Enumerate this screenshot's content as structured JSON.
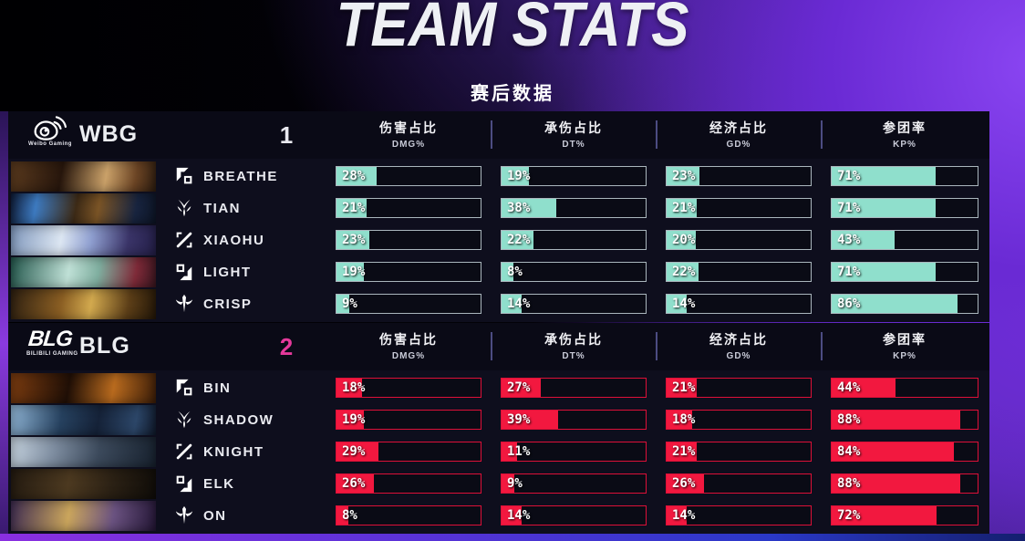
{
  "title": "TEAM STATS",
  "subtitle": "赛后数据",
  "columns": [
    {
      "zh": "伤害占比",
      "en": "DMG%"
    },
    {
      "zh": "承伤占比",
      "en": "DT%"
    },
    {
      "zh": "经济占比",
      "en": "GD%"
    },
    {
      "zh": "参团率",
      "en": "KP%"
    }
  ],
  "colors": {
    "wbg_bar": "#8FDFCC",
    "wbg_border": "#AAB6BD",
    "blg_bar": "#F2183F",
    "blg_border": "#DD1038",
    "score_wbg": "#E9E9F0",
    "score_blg": "#E5399B"
  },
  "teams": [
    {
      "name": "WBG",
      "logo_caption": "Weibo Gaming",
      "score": "1",
      "players": [
        {
          "role": "top",
          "name": "BREATHE",
          "stats": [
            "28%",
            "19%",
            "23%",
            "71%"
          ]
        },
        {
          "role": "jungle",
          "name": "TIAN",
          "stats": [
            "21%",
            "38%",
            "21%",
            "71%"
          ]
        },
        {
          "role": "mid",
          "name": "XIAOHU",
          "stats": [
            "23%",
            "22%",
            "20%",
            "43%"
          ]
        },
        {
          "role": "bot",
          "name": "LIGHT",
          "stats": [
            "19%",
            "8%",
            "22%",
            "71%"
          ]
        },
        {
          "role": "support",
          "name": "CRISP",
          "stats": [
            "9%",
            "14%",
            "14%",
            "86%"
          ]
        }
      ]
    },
    {
      "name": "BLG",
      "logo_text": "BLG",
      "logo_caption": "BILIBILI GAMING",
      "score": "2",
      "players": [
        {
          "role": "top",
          "name": "BIN",
          "stats": [
            "18%",
            "27%",
            "21%",
            "44%"
          ]
        },
        {
          "role": "jungle",
          "name": "SHADOW",
          "stats": [
            "19%",
            "39%",
            "18%",
            "88%"
          ]
        },
        {
          "role": "mid",
          "name": "KNIGHT",
          "stats": [
            "29%",
            "11%",
            "21%",
            "84%"
          ]
        },
        {
          "role": "bot",
          "name": "ELK",
          "stats": [
            "26%",
            "9%",
            "26%",
            "88%"
          ]
        },
        {
          "role": "support",
          "name": "ON",
          "stats": [
            "8%",
            "14%",
            "14%",
            "72%"
          ]
        }
      ]
    }
  ]
}
